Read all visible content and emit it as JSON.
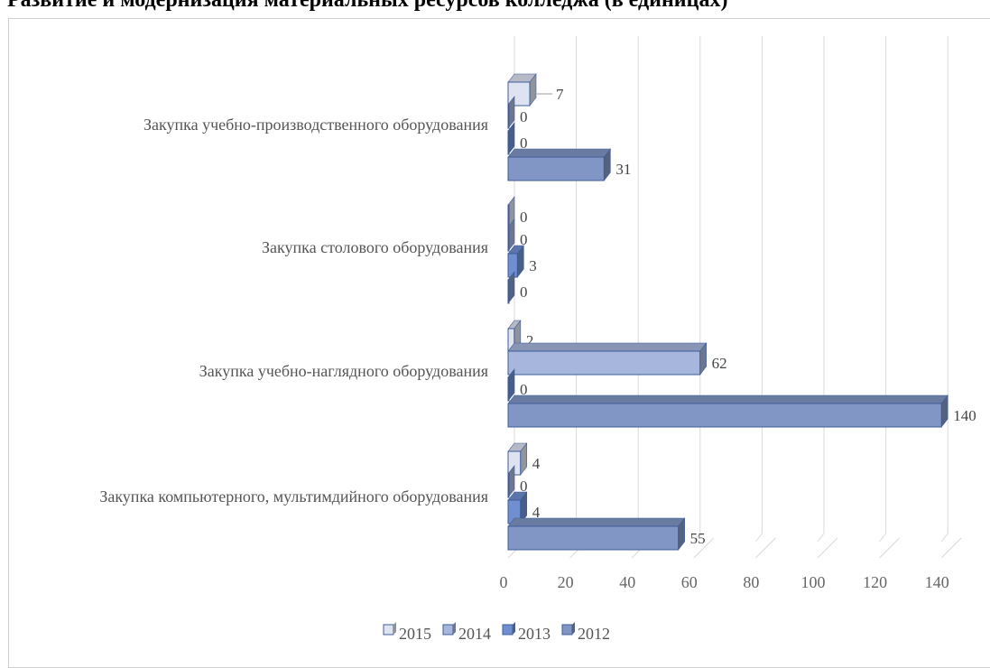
{
  "chart_data": {
    "type": "bar",
    "orientation": "horizontal",
    "title": "Развитие и модернизация материальных ресурсов колледжа (в единицах)",
    "categories": [
      "Закупка учебно-производственного оборудования",
      "Закупка столового оборудования",
      "Закупка учебно-наглядного оборудования",
      "Закупка компьютерного, мультимдийного оборудования"
    ],
    "series": [
      {
        "name": "2015",
        "values": [
          7,
          0,
          2,
          4
        ],
        "color": "#dde3f1"
      },
      {
        "name": "2014",
        "values": [
          0,
          0,
          62,
          0
        ],
        "color": "#a7b6dc"
      },
      {
        "name": "2013",
        "values": [
          0,
          3,
          0,
          4
        ],
        "color": "#6f8fd0"
      },
      {
        "name": "2012",
        "values": [
          31,
          0,
          140,
          55
        ],
        "color": "#8196c4"
      }
    ],
    "xticks": [
      "0",
      "20",
      "40",
      "60",
      "80",
      "100",
      "120",
      "140"
    ],
    "xlim": [
      0,
      140
    ],
    "grid": true,
    "legend": "bottom",
    "three_d": true
  }
}
